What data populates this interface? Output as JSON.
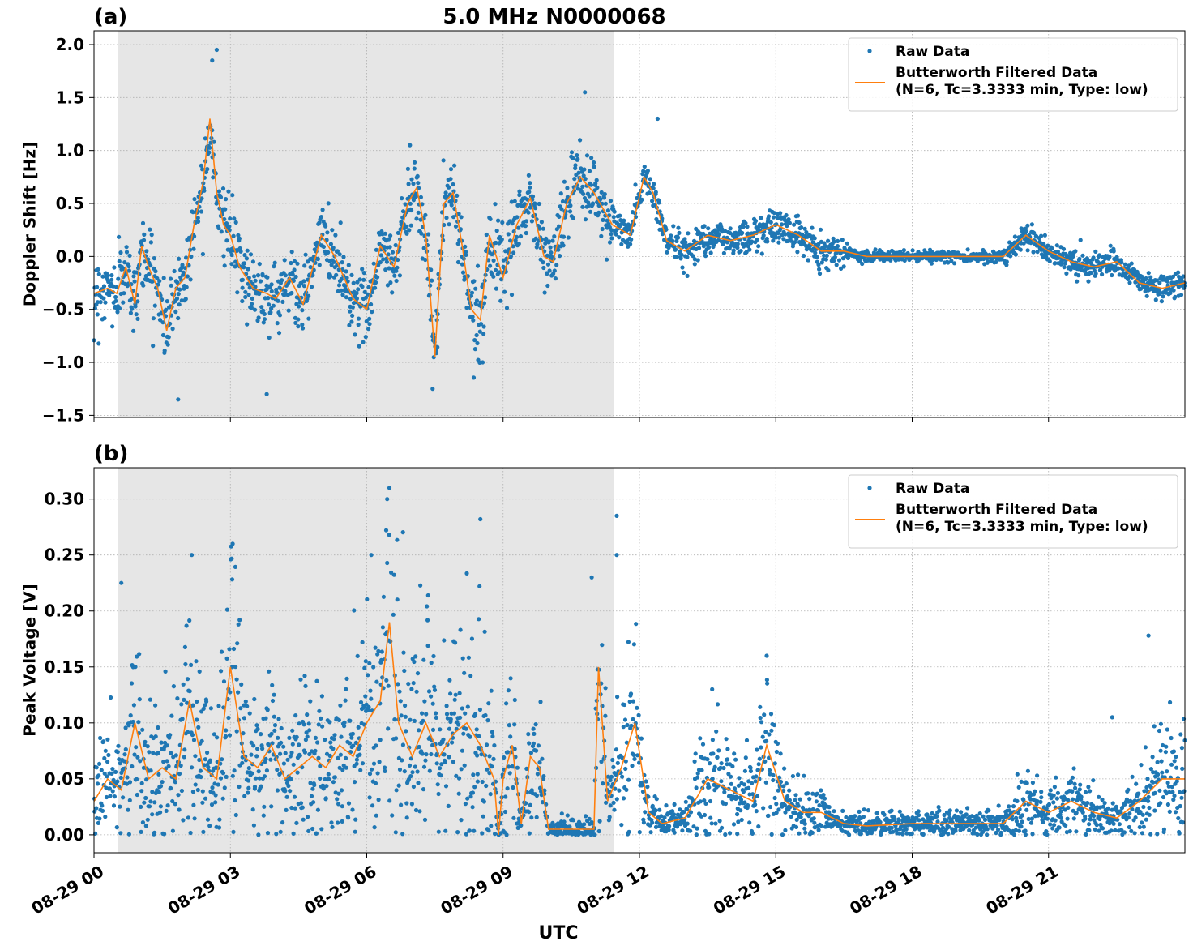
{
  "figure": {
    "title": "5.0 MHz N0000068",
    "xlabel": "UTC",
    "colors": {
      "raw": "#1f77b4",
      "filtered": "#ff7f0e",
      "shade": "#e6e6e6",
      "grid": "#b0b0b0"
    }
  },
  "chart_data": [
    {
      "type": "scatter",
      "panel_label": "(a)",
      "title": "5.0 MHz N0000068",
      "xlabel": "",
      "ylabel": "Doppler Shift [Hz]",
      "xlim_hours": [
        0,
        24
      ],
      "ylim": [
        -1.52,
        2.13
      ],
      "grid": true,
      "shaded_region_hours": [
        0.52,
        11.43
      ],
      "xticks": [
        {
          "h": 0,
          "label": "08-29 00"
        },
        {
          "h": 3,
          "label": "08-29 03"
        },
        {
          "h": 6,
          "label": "08-29 06"
        },
        {
          "h": 9,
          "label": "08-29 09"
        },
        {
          "h": 12,
          "label": "08-29 12"
        },
        {
          "h": 15,
          "label": "08-29 15"
        },
        {
          "h": 18,
          "label": "08-29 18"
        },
        {
          "h": 21,
          "label": "08-29 21"
        }
      ],
      "yticks": [
        {
          "v": 2.0,
          "label": "2.0"
        },
        {
          "v": 1.5,
          "label": "1.5"
        },
        {
          "v": 1.0,
          "label": "1.0"
        },
        {
          "v": 0.5,
          "label": "0.5"
        },
        {
          "v": 0.0,
          "label": "0.0"
        },
        {
          "v": -0.5,
          "label": "−0.5"
        },
        {
          "v": -1.0,
          "label": "−1.0"
        },
        {
          "v": -1.5,
          "label": "−1.5"
        }
      ],
      "legend": {
        "placement": "top-right",
        "entries": [
          {
            "marker": "point",
            "text": "Raw Data"
          },
          {
            "marker": "line",
            "text": "Butterworth Filtered Data",
            "text2": "(N=6, Tc=3.3333 min, Type: low)"
          }
        ]
      },
      "series": [
        {
          "name": "Butterworth Filtered Data",
          "x_hours": [
            0.0,
            0.3,
            0.5,
            0.7,
            0.9,
            1.05,
            1.2,
            1.4,
            1.6,
            1.8,
            2.0,
            2.2,
            2.4,
            2.55,
            2.7,
            2.85,
            3.0,
            3.2,
            3.5,
            3.8,
            4.0,
            4.3,
            4.6,
            5.0,
            5.3,
            5.7,
            6.0,
            6.3,
            6.6,
            6.9,
            7.1,
            7.3,
            7.5,
            7.7,
            7.9,
            8.1,
            8.3,
            8.5,
            8.7,
            9.0,
            9.3,
            9.6,
            9.9,
            10.1,
            10.4,
            10.7,
            11.0,
            11.4,
            11.8,
            12.1,
            12.3,
            12.6,
            13.0,
            13.5,
            14.0,
            14.5,
            15.0,
            15.5,
            16.0,
            16.5,
            17.0,
            18.0,
            19.0,
            20.0,
            20.5,
            21.0,
            21.5,
            22.0,
            22.5,
            23.0,
            23.5,
            24.0
          ],
          "y": [
            -0.35,
            -0.3,
            -0.35,
            -0.1,
            -0.45,
            0.1,
            -0.1,
            -0.3,
            -0.7,
            -0.3,
            -0.2,
            0.3,
            0.7,
            1.3,
            0.6,
            0.3,
            0.2,
            -0.1,
            -0.3,
            -0.35,
            -0.4,
            -0.2,
            -0.45,
            0.2,
            0.0,
            -0.4,
            -0.5,
            0.1,
            -0.1,
            0.5,
            0.65,
            0.2,
            -0.95,
            0.5,
            0.6,
            0.1,
            -0.5,
            -0.6,
            0.2,
            -0.2,
            0.3,
            0.55,
            0.0,
            -0.05,
            0.5,
            0.75,
            0.6,
            0.3,
            0.2,
            0.75,
            0.6,
            0.15,
            0.05,
            0.2,
            0.15,
            0.2,
            0.3,
            0.2,
            0.05,
            0.05,
            0.0,
            0.0,
            0.0,
            0.0,
            0.2,
            0.05,
            -0.05,
            -0.1,
            -0.05,
            -0.25,
            -0.3,
            -0.25
          ]
        },
        {
          "name": "Raw Data",
          "note_values": "scattered points around the filtered curve; spread ~±0.3 Hz in shaded region, ~±0.1 Hz late day",
          "outliers_hours_y": [
            [
              2.7,
              1.95
            ],
            [
              2.6,
              1.85
            ],
            [
              10.8,
              1.55
            ],
            [
              12.4,
              1.3
            ],
            [
              1.85,
              -1.35
            ],
            [
              7.45,
              -1.25
            ],
            [
              3.8,
              -1.3
            ],
            [
              8.55,
              -1.0
            ],
            [
              6.95,
              1.05
            ]
          ]
        }
      ]
    },
    {
      "type": "scatter",
      "panel_label": "(b)",
      "title": "",
      "xlabel": "UTC",
      "ylabel": "Peak Voltage [V]",
      "xlim_hours": [
        0,
        24
      ],
      "ylim": [
        -0.016,
        0.328
      ],
      "grid": true,
      "shaded_region_hours": [
        0.52,
        11.43
      ],
      "xticks": [
        {
          "h": 0,
          "label": "08-29 00"
        },
        {
          "h": 3,
          "label": "08-29 03"
        },
        {
          "h": 6,
          "label": "08-29 06"
        },
        {
          "h": 9,
          "label": "08-29 09"
        },
        {
          "h": 12,
          "label": "08-29 12"
        },
        {
          "h": 15,
          "label": "08-29 15"
        },
        {
          "h": 18,
          "label": "08-29 18"
        },
        {
          "h": 21,
          "label": "08-29 21"
        }
      ],
      "yticks": [
        {
          "v": 0.3,
          "label": "0.30"
        },
        {
          "v": 0.25,
          "label": "0.25"
        },
        {
          "v": 0.2,
          "label": "0.20"
        },
        {
          "v": 0.15,
          "label": "0.15"
        },
        {
          "v": 0.1,
          "label": "0.10"
        },
        {
          "v": 0.05,
          "label": "0.05"
        },
        {
          "v": 0.0,
          "label": "0.00"
        }
      ],
      "legend": {
        "placement": "top-right",
        "entries": [
          {
            "marker": "point",
            "text": "Raw Data"
          },
          {
            "marker": "line",
            "text": "Butterworth Filtered Data",
            "text2": "(N=6, Tc=3.3333 min, Type: low)"
          }
        ]
      },
      "series": [
        {
          "name": "Butterworth Filtered Data",
          "x_hours": [
            0.0,
            0.3,
            0.6,
            0.9,
            1.2,
            1.5,
            1.8,
            2.1,
            2.4,
            2.7,
            3.0,
            3.3,
            3.6,
            3.9,
            4.2,
            4.5,
            4.8,
            5.1,
            5.4,
            5.7,
            6.0,
            6.3,
            6.5,
            6.7,
            7.0,
            7.3,
            7.6,
            7.9,
            8.2,
            8.5,
            8.8,
            8.9,
            9.0,
            9.2,
            9.4,
            9.6,
            9.8,
            10.0,
            10.5,
            11.0,
            11.1,
            11.3,
            11.6,
            11.9,
            12.2,
            12.5,
            13.0,
            13.5,
            14.0,
            14.5,
            14.8,
            15.2,
            15.6,
            16.0,
            16.5,
            17.0,
            18.0,
            19.0,
            20.0,
            20.5,
            21.0,
            21.5,
            22.0,
            22.5,
            23.0,
            23.5,
            24.0
          ],
          "y": [
            0.03,
            0.05,
            0.04,
            0.1,
            0.05,
            0.06,
            0.05,
            0.12,
            0.06,
            0.05,
            0.15,
            0.07,
            0.06,
            0.08,
            0.05,
            0.06,
            0.07,
            0.06,
            0.08,
            0.07,
            0.1,
            0.12,
            0.19,
            0.1,
            0.07,
            0.1,
            0.07,
            0.09,
            0.1,
            0.08,
            0.05,
            0.0,
            0.05,
            0.08,
            0.01,
            0.07,
            0.06,
            0.005,
            0.005,
            0.005,
            0.15,
            0.03,
            0.06,
            0.1,
            0.02,
            0.01,
            0.015,
            0.05,
            0.04,
            0.03,
            0.08,
            0.03,
            0.02,
            0.02,
            0.01,
            0.008,
            0.01,
            0.01,
            0.01,
            0.03,
            0.02,
            0.03,
            0.02,
            0.015,
            0.03,
            0.05,
            0.05
          ]
        },
        {
          "name": "Raw Data",
          "note_values": "scattered points spread above and below the filtered curve",
          "outliers_hours_y": [
            [
              6.5,
              0.31
            ],
            [
              6.45,
              0.3
            ],
            [
              11.5,
              0.285
            ],
            [
              8.5,
              0.282
            ],
            [
              11.5,
              0.25
            ],
            [
              3.05,
              0.26
            ],
            [
              2.15,
              0.25
            ],
            [
              6.1,
              0.25
            ],
            [
              10.95,
              0.23
            ],
            [
              0.6,
              0.225
            ],
            [
              23.2,
              0.178
            ],
            [
              14.8,
              0.16
            ],
            [
              13.6,
              0.13
            ],
            [
              22.4,
              0.105
            ]
          ]
        }
      ]
    }
  ]
}
